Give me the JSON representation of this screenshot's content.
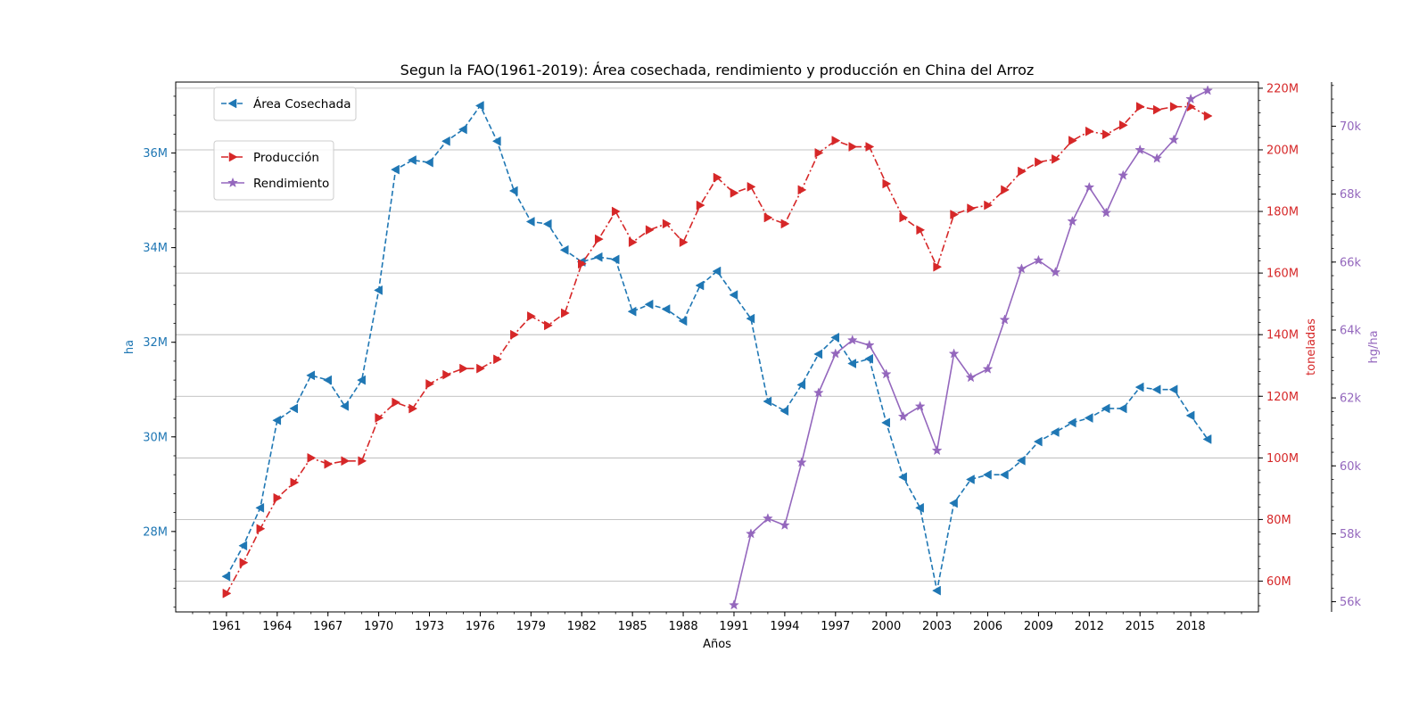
{
  "chart_data": {
    "type": "line",
    "title": "Segun la FAO(1961-2019): Área cosechada, rendimiento y producción en China del Arroz",
    "xlabel": "Años",
    "ylabel_left": "ha",
    "ylabel_right": "toneladas",
    "ylabel_right2": "hg/ha",
    "grid": "horizontal",
    "x_ticks": [
      "1961",
      "1964",
      "1967",
      "1970",
      "1973",
      "1976",
      "1979",
      "1982",
      "1985",
      "1988",
      "1991",
      "1994",
      "1997",
      "2000",
      "2003",
      "2006",
      "2009",
      "2012",
      "2015",
      "2018"
    ],
    "x_range": [
      1958,
      2022
    ],
    "axes": {
      "left": {
        "label": "ha",
        "color": "#1f77b4",
        "range": [
          26300000,
          37500000
        ],
        "ticks": [
          28000000,
          30000000,
          32000000,
          34000000,
          36000000
        ],
        "tick_labels": [
          "28M",
          "30M",
          "32M",
          "34M",
          "36M"
        ]
      },
      "right": {
        "label": "toneladas",
        "color": "#d62728",
        "range": [
          50000000,
          222000000
        ],
        "ticks": [
          60000000,
          80000000,
          100000000,
          120000000,
          140000000,
          160000000,
          180000000,
          200000000,
          220000000
        ],
        "tick_labels": [
          "60M",
          "80M",
          "100M",
          "120M",
          "140M",
          "160M",
          "180M",
          "200M",
          "220M"
        ]
      },
      "right2": {
        "label": "hg/ha",
        "color": "#9467bd",
        "range": [
          55700,
          71300
        ],
        "ticks": [
          56000,
          58000,
          60000,
          62000,
          64000,
          66000,
          68000,
          70000
        ],
        "tick_labels": [
          "56k",
          "58k",
          "60k",
          "62k",
          "64k",
          "66k",
          "68k",
          "70k"
        ]
      }
    },
    "legend": [
      {
        "name": "Área Cosechada",
        "color": "#1f77b4",
        "style": "dashed",
        "marker": "triangle-left"
      },
      {
        "name": "Producción",
        "color": "#d62728",
        "style": "dashdot",
        "marker": "triangle-right"
      },
      {
        "name": "Rendimiento",
        "color": "#9467bd",
        "style": "solid",
        "marker": "star"
      }
    ],
    "series": [
      {
        "name": "Área Cosechada",
        "axis": "left",
        "start_year": 1961,
        "values": [
          27050000,
          27700000,
          28500000,
          30350000,
          30600000,
          31300000,
          31200000,
          30650000,
          31200000,
          33100000,
          35650000,
          35850000,
          35800000,
          36250000,
          36500000,
          37000000,
          36250000,
          35200000,
          34550000,
          34500000,
          33950000,
          33700000,
          33800000,
          33750000,
          32650000,
          32800000,
          32700000,
          32450000,
          33200000,
          33500000,
          33000000,
          32500000,
          30750000,
          30550000,
          31100000,
          31750000,
          32100000,
          31550000,
          31650000,
          30300000,
          29150000,
          28500000,
          26750000,
          28600000,
          29100000,
          29200000,
          29200000,
          29500000,
          29900000,
          30100000,
          30300000,
          30400000,
          30600000,
          30600000,
          31050000,
          31000000,
          31000000,
          30450000,
          29950000
        ]
      },
      {
        "name": "Producción",
        "axis": "right",
        "start_year": 1961,
        "values": [
          56000000,
          66000000,
          77000000,
          87000000,
          92000000,
          100000000,
          98000000,
          99000000,
          99000000,
          113000000,
          118000000,
          116000000,
          124000000,
          127000000,
          129000000,
          129000000,
          132000000,
          140000000,
          146000000,
          143000000,
          147000000,
          163000000,
          171000000,
          180000000,
          170000000,
          174000000,
          176000000,
          170000000,
          182000000,
          191000000,
          186000000,
          188000000,
          178000000,
          176000000,
          187000000,
          199000000,
          203000000,
          201000000,
          201000000,
          189000000,
          178000000,
          174000000,
          162000000,
          179000000,
          181000000,
          182000000,
          187000000,
          193000000,
          196000000,
          197000000,
          203000000,
          206000000,
          205000000,
          208000000,
          214000000,
          213000000,
          214000000,
          214000000,
          211000000
        ]
      },
      {
        "name": "Rendimiento",
        "axis": "right2",
        "start_year": 1991,
        "values": [
          55900,
          58000,
          58450,
          58250,
          60100,
          62150,
          63300,
          63700,
          63550,
          62700,
          61450,
          61750,
          60450,
          63300,
          62600,
          62850,
          64300,
          65800,
          66050,
          65700,
          67200,
          68200,
          67450,
          68550,
          69300,
          69050,
          69600,
          70800,
          71050
        ]
      }
    ]
  }
}
